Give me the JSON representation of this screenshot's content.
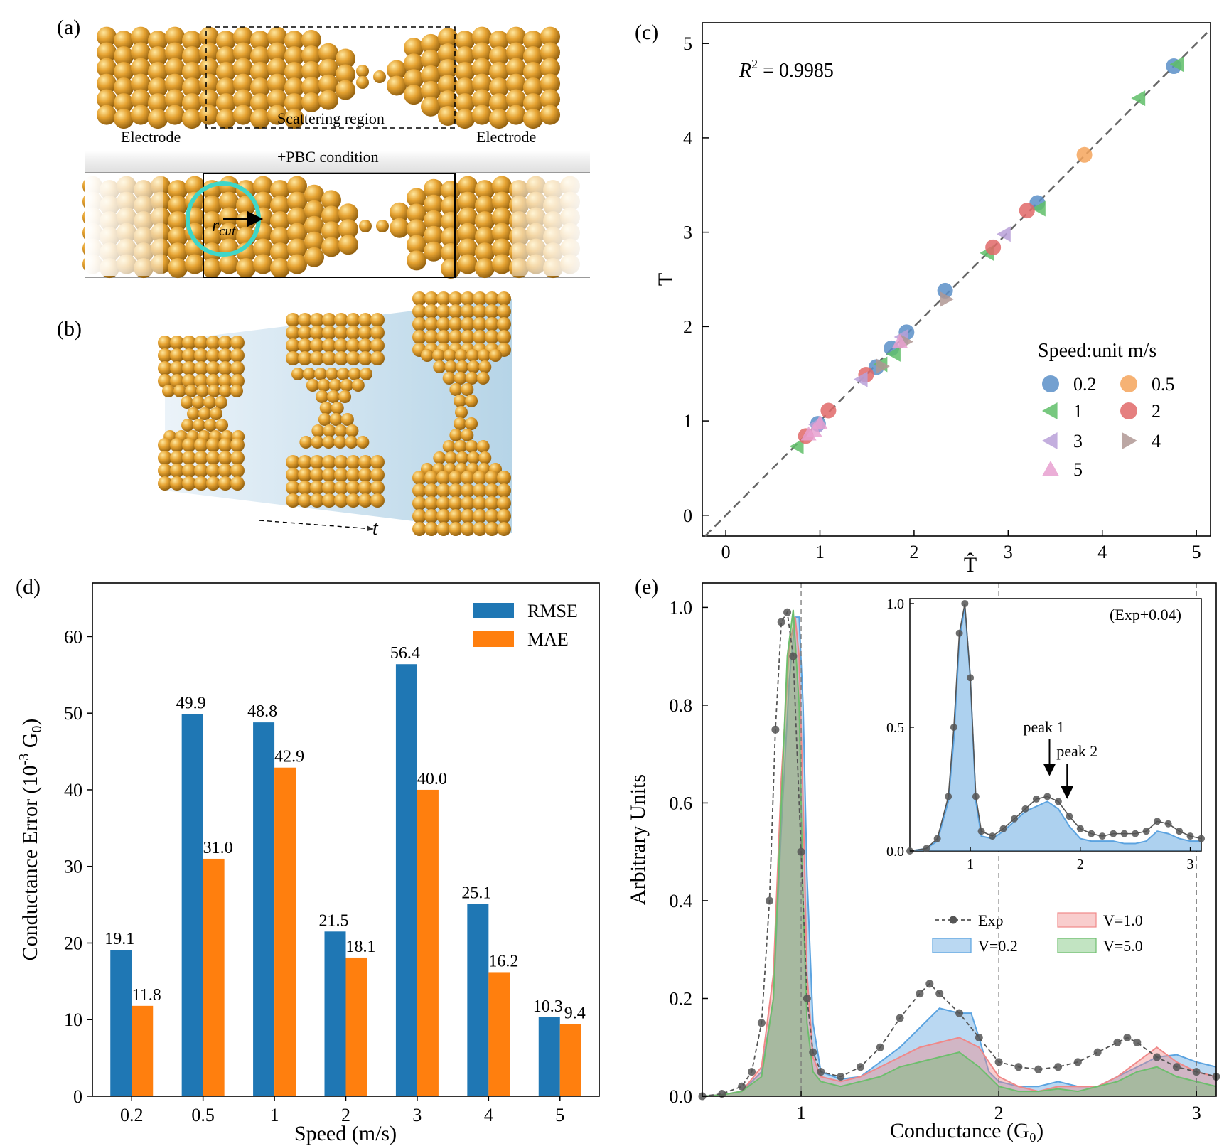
{
  "panel_labels": {
    "a": "(a)",
    "b": "(b)",
    "c": "(c)",
    "d": "(d)",
    "e": "(e)"
  },
  "panel_a": {
    "electrode_left": "Electrode",
    "electrode_right": "Electrode",
    "scattering": "Scattering region",
    "pbc": "+PBC condition",
    "rcut_main": "r",
    "rcut_sub": "cut",
    "colors": {
      "atom": "#e6a332",
      "atom_dark": "#9a6410",
      "circle": "#3fd6c8"
    }
  },
  "panel_b": {
    "t_label": "t"
  },
  "chart_data": [
    {
      "id": "c",
      "type": "scatter",
      "xlabel": "T̂",
      "ylabel": "T",
      "xlim": [
        -0.25,
        5.15
      ],
      "ylim": [
        -0.22,
        5.22
      ],
      "xticks": [
        0,
        1,
        2,
        3,
        4,
        5
      ],
      "yticks": [
        0,
        1,
        2,
        3,
        4,
        5
      ],
      "annotation_main": "R",
      "annotation_sup": "2",
      "annotation_rest": " = 0.9985",
      "legend_title": "Speed:unit m/s",
      "legend_position": "right-center",
      "reference_line": "y = x (dashed)",
      "series": [
        {
          "name": "0.2",
          "marker": "circle",
          "color": "#5a8fc8",
          "points": [
            [
              4.76,
              4.76
            ],
            [
              3.31,
              3.31
            ],
            [
              2.33,
              2.38
            ],
            [
              1.92,
              1.94
            ],
            [
              1.76,
              1.77
            ],
            [
              1.6,
              1.57
            ],
            [
              0.98,
              0.97
            ]
          ]
        },
        {
          "name": "0.5",
          "marker": "circle",
          "color": "#f5a45c",
          "points": [
            [
              3.81,
              3.82
            ]
          ]
        },
        {
          "name": "1",
          "marker": "triangle-left",
          "color": "#5fbe68",
          "points": [
            [
              4.8,
              4.78
            ],
            [
              4.39,
              4.42
            ],
            [
              3.33,
              3.25
            ],
            [
              2.78,
              2.78
            ],
            [
              1.79,
              1.71
            ],
            [
              1.65,
              1.6
            ],
            [
              0.76,
              0.73
            ]
          ]
        },
        {
          "name": "2",
          "marker": "circle",
          "color": "#e06868",
          "points": [
            [
              3.2,
              3.23
            ],
            [
              2.84,
              2.84
            ],
            [
              1.49,
              1.49
            ],
            [
              1.09,
              1.11
            ],
            [
              0.85,
              0.84
            ]
          ]
        },
        {
          "name": "3",
          "marker": "triangle-left",
          "color": "#b8a0d8",
          "points": [
            [
              2.96,
              2.98
            ],
            [
              1.87,
              1.89
            ],
            [
              1.44,
              1.44
            ],
            [
              0.96,
              0.96
            ]
          ]
        },
        {
          "name": "4",
          "marker": "triangle-right",
          "color": "#b09894",
          "points": [
            [
              2.34,
              2.29
            ],
            [
              1.66,
              1.58
            ],
            [
              1.91,
              1.84
            ]
          ]
        },
        {
          "name": "5",
          "marker": "triangle-up",
          "color": "#e8a0d0",
          "points": [
            [
              1.85,
              1.84
            ],
            [
              1.0,
              0.98
            ],
            [
              0.94,
              0.9
            ],
            [
              0.88,
              0.86
            ]
          ]
        }
      ]
    },
    {
      "id": "d",
      "type": "bar",
      "xlabel": "Speed (m/s)",
      "ylabel": "Conductance Error (10",
      "ylabel_sup": "-3",
      "ylabel_rest": " G",
      "ylabel_sub": "0",
      "ylabel_close": ")",
      "ylim": [
        0,
        67
      ],
      "yticks": [
        0,
        10,
        20,
        30,
        40,
        50,
        60
      ],
      "categories": [
        "0.2",
        "0.5",
        "1",
        "2",
        "3",
        "4",
        "5"
      ],
      "legend_position": "top-right",
      "series": [
        {
          "name": "RMSE",
          "color": "#1f77b4",
          "values": [
            19.1,
            49.9,
            48.8,
            21.5,
            56.4,
            25.1,
            10.3
          ],
          "labels": [
            "19.1",
            "49.9",
            "48.8",
            "21.5",
            "56.4",
            "25.1",
            "10.3"
          ]
        },
        {
          "name": "MAE",
          "color": "#ff7f0e",
          "values": [
            11.8,
            31.0,
            42.9,
            18.1,
            40.0,
            16.2,
            9.4
          ],
          "labels": [
            "11.8",
            "31.0",
            "42.9",
            "18.1",
            "40.0",
            "16.2",
            "9.4"
          ]
        }
      ]
    },
    {
      "id": "e",
      "type": "area",
      "xlabel": "Conductance (G₀)",
      "ylabel": "Arbitrary Units",
      "xlim": [
        0.5,
        3.1
      ],
      "ylim": [
        0,
        1.05
      ],
      "xticks": [
        1,
        2,
        3
      ],
      "yticks": [
        0.0,
        0.2,
        0.4,
        0.6,
        0.8,
        1.0
      ],
      "ytick_labels": [
        "0.0",
        "0.2",
        "0.4",
        "0.6",
        "0.8",
        "1.0"
      ],
      "vlines": [
        1,
        2,
        3
      ],
      "legend_position": "center-right",
      "exp": {
        "name": "Exp",
        "color": "#555555",
        "x": [
          0.5,
          0.6,
          0.7,
          0.75,
          0.8,
          0.84,
          0.87,
          0.9,
          0.93,
          0.96,
          1.0,
          1.03,
          1.06,
          1.1,
          1.2,
          1.3,
          1.4,
          1.5,
          1.6,
          1.65,
          1.7,
          1.8,
          1.9,
          2.0,
          2.1,
          2.2,
          2.3,
          2.4,
          2.5,
          2.6,
          2.65,
          2.7,
          2.8,
          2.9,
          3.0,
          3.1
        ],
        "y": [
          0.0,
          0.005,
          0.02,
          0.05,
          0.15,
          0.4,
          0.75,
          0.97,
          0.99,
          0.9,
          0.5,
          0.2,
          0.09,
          0.05,
          0.04,
          0.06,
          0.1,
          0.16,
          0.21,
          0.23,
          0.21,
          0.17,
          0.12,
          0.07,
          0.06,
          0.055,
          0.06,
          0.07,
          0.09,
          0.11,
          0.12,
          0.11,
          0.08,
          0.06,
          0.05,
          0.04
        ]
      },
      "series": [
        {
          "name": "V=0.2",
          "color": "#5ba3e0",
          "x": [
            0.5,
            0.6,
            0.7,
            0.8,
            0.86,
            0.9,
            0.94,
            0.97,
            0.99,
            1.01,
            1.03,
            1.06,
            1.1,
            1.2,
            1.3,
            1.4,
            1.5,
            1.6,
            1.7,
            1.8,
            1.86,
            1.9,
            1.95,
            2.0,
            2.1,
            2.2,
            2.3,
            2.4,
            2.5,
            2.6,
            2.7,
            2.8,
            2.9,
            3.0,
            3.1
          ],
          "y": [
            0.0,
            0.003,
            0.01,
            0.05,
            0.2,
            0.55,
            0.85,
            0.98,
            0.98,
            0.8,
            0.45,
            0.15,
            0.05,
            0.035,
            0.04,
            0.07,
            0.1,
            0.14,
            0.18,
            0.17,
            0.17,
            0.12,
            0.05,
            0.03,
            0.02,
            0.02,
            0.03,
            0.02,
            0.02,
            0.04,
            0.06,
            0.08,
            0.085,
            0.07,
            0.06
          ]
        },
        {
          "name": "V=1.0",
          "color": "#f08888",
          "x": [
            0.5,
            0.6,
            0.7,
            0.8,
            0.86,
            0.9,
            0.94,
            0.97,
            0.99,
            1.01,
            1.03,
            1.06,
            1.1,
            1.2,
            1.3,
            1.4,
            1.5,
            1.6,
            1.7,
            1.8,
            1.9,
            2.0,
            2.1,
            2.2,
            2.3,
            2.4,
            2.5,
            2.6,
            2.7,
            2.8,
            2.9,
            3.0,
            3.1
          ],
          "y": [
            0.0,
            0.003,
            0.01,
            0.06,
            0.25,
            0.65,
            0.92,
            0.98,
            0.9,
            0.6,
            0.25,
            0.08,
            0.04,
            0.03,
            0.04,
            0.06,
            0.08,
            0.1,
            0.11,
            0.12,
            0.1,
            0.04,
            0.02,
            0.01,
            0.02,
            0.02,
            0.02,
            0.04,
            0.07,
            0.1,
            0.07,
            0.05,
            0.04
          ]
        },
        {
          "name": "V=5.0",
          "color": "#6dbe6d",
          "x": [
            0.5,
            0.6,
            0.7,
            0.8,
            0.86,
            0.9,
            0.93,
            0.96,
            0.99,
            1.01,
            1.03,
            1.06,
            1.1,
            1.2,
            1.3,
            1.4,
            1.5,
            1.6,
            1.7,
            1.8,
            1.9,
            2.0,
            2.1,
            2.2,
            2.3,
            2.4,
            2.5,
            2.6,
            2.7,
            2.8,
            2.9,
            3.0,
            3.1
          ],
          "y": [
            0.0,
            0.003,
            0.01,
            0.04,
            0.2,
            0.6,
            0.9,
            0.995,
            0.8,
            0.4,
            0.15,
            0.05,
            0.03,
            0.02,
            0.03,
            0.04,
            0.06,
            0.07,
            0.08,
            0.09,
            0.06,
            0.02,
            0.01,
            0.01,
            0.015,
            0.01,
            0.02,
            0.03,
            0.05,
            0.06,
            0.04,
            0.03,
            0.02
          ]
        }
      ]
    },
    {
      "id": "e_inset",
      "type": "area",
      "xlim": [
        0.45,
        3.1
      ],
      "ylim": [
        0,
        1.02
      ],
      "xticks": [
        1,
        2,
        3
      ],
      "yticks": [
        0.0,
        0.5,
        1.0
      ],
      "ytick_labels": [
        "0.0",
        "0.5",
        "1.0"
      ],
      "annotation": "(Exp+0.04)",
      "peak1": "peak 1",
      "peak2": "peak 2",
      "peak1_x": 1.72,
      "peak2_x": 1.88,
      "fill_color": "#5ba3e0",
      "fit": {
        "x": [
          0.45,
          0.6,
          0.7,
          0.8,
          0.85,
          0.9,
          0.95,
          1.0,
          1.05,
          1.1,
          1.2,
          1.3,
          1.4,
          1.5,
          1.6,
          1.7,
          1.8,
          1.9,
          2.0,
          2.1,
          2.2,
          2.3,
          2.4,
          2.5,
          2.6,
          2.7,
          2.8,
          2.9,
          3.0,
          3.1
        ],
        "y": [
          0.0,
          0.01,
          0.04,
          0.2,
          0.45,
          0.85,
          0.99,
          0.7,
          0.2,
          0.06,
          0.05,
          0.08,
          0.12,
          0.16,
          0.18,
          0.2,
          0.17,
          0.1,
          0.05,
          0.04,
          0.04,
          0.04,
          0.03,
          0.03,
          0.04,
          0.08,
          0.07,
          0.05,
          0.04,
          0.04
        ]
      },
      "exp": {
        "x": [
          0.45,
          0.6,
          0.7,
          0.8,
          0.85,
          0.9,
          0.95,
          1.0,
          1.05,
          1.1,
          1.2,
          1.3,
          1.4,
          1.5,
          1.6,
          1.7,
          1.8,
          1.9,
          2.0,
          2.1,
          2.2,
          2.3,
          2.4,
          2.5,
          2.6,
          2.7,
          2.8,
          2.9,
          3.0,
          3.1
        ],
        "y": [
          0.0,
          0.01,
          0.05,
          0.22,
          0.5,
          0.88,
          1.0,
          0.7,
          0.22,
          0.08,
          0.06,
          0.09,
          0.13,
          0.17,
          0.21,
          0.22,
          0.2,
          0.14,
          0.09,
          0.07,
          0.06,
          0.07,
          0.07,
          0.07,
          0.08,
          0.12,
          0.11,
          0.08,
          0.06,
          0.05
        ]
      }
    }
  ]
}
